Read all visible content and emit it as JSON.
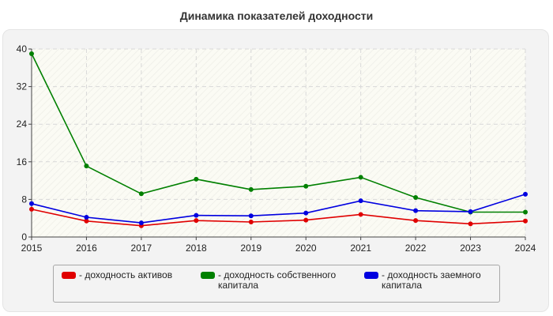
{
  "chart_data": {
    "type": "line",
    "title": "Динамика показателей доходности",
    "x": [
      "2015",
      "2016",
      "2017",
      "2018",
      "2019",
      "2020",
      "2021",
      "2022",
      "2023",
      "2024"
    ],
    "ylim": [
      0,
      40
    ],
    "yticks": [
      0,
      8,
      16,
      24,
      32,
      40
    ],
    "grid": true,
    "legend_position": "bottom",
    "series": [
      {
        "name": "- доходность активов",
        "color": "#e00000",
        "values": [
          5.9,
          3.4,
          2.4,
          3.5,
          3.2,
          3.6,
          4.8,
          3.5,
          2.8,
          3.4
        ]
      },
      {
        "name": "- доходность собственного капитала",
        "color": "#008000",
        "values": [
          39.0,
          15.1,
          9.2,
          12.3,
          10.1,
          10.8,
          12.7,
          8.4,
          5.3,
          5.3
        ]
      },
      {
        "name": "- доходность заемного капитала",
        "color": "#0000e0",
        "values": [
          7.1,
          4.2,
          3.0,
          4.6,
          4.5,
          5.1,
          7.7,
          5.6,
          5.4,
          9.1
        ]
      }
    ]
  }
}
